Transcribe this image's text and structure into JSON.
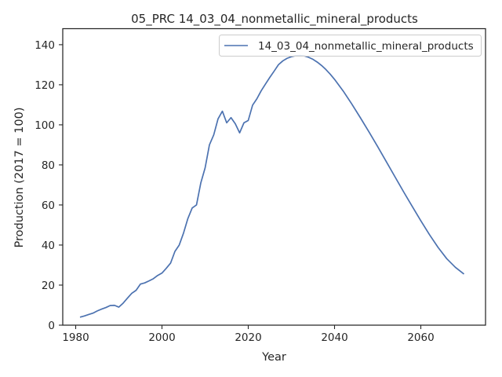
{
  "chart_data": {
    "type": "line",
    "title": "05_PRC 14_03_04_nonmetallic_mineral_products",
    "xlabel": "Year",
    "ylabel": "Production (2017 = 100)",
    "xlim": [
      1977,
      2075
    ],
    "ylim": [
      0,
      148
    ],
    "x_ticks": [
      1980,
      2000,
      2020,
      2040,
      2060
    ],
    "y_ticks": [
      0,
      20,
      40,
      60,
      80,
      100,
      120,
      140
    ],
    "grid": false,
    "legend_position": "top-right",
    "series": [
      {
        "name": "14_03_04_nonmetallic_mineral_products",
        "color": "#4c72b0",
        "x": [
          1981,
          1982,
          1983,
          1984,
          1985,
          1986,
          1987,
          1988,
          1989,
          1990,
          1991,
          1992,
          1993,
          1994,
          1995,
          1996,
          1997,
          1998,
          1999,
          2000,
          2001,
          2002,
          2003,
          2004,
          2005,
          2006,
          2007,
          2008,
          2009,
          2010,
          2011,
          2012,
          2013,
          2014,
          2015,
          2016,
          2017,
          2018,
          2019,
          2020,
          2021,
          2022,
          2023,
          2024,
          2025,
          2026,
          2027,
          2028,
          2029,
          2030,
          2031,
          2032,
          2033,
          2034,
          2035,
          2036,
          2037,
          2038,
          2039,
          2040,
          2042,
          2044,
          2046,
          2048,
          2050,
          2052,
          2054,
          2056,
          2058,
          2060,
          2062,
          2064,
          2066,
          2068,
          2070
        ],
        "values": [
          4,
          4.6,
          5.3,
          6,
          7.1,
          8,
          8.8,
          9.8,
          9.9,
          9,
          11,
          13.5,
          15.9,
          17.4,
          20.5,
          21.1,
          22.1,
          23.2,
          24.8,
          26,
          28.4,
          31,
          36.8,
          40,
          46,
          53.2,
          58.5,
          60,
          71,
          78.5,
          90,
          95,
          103,
          106.8,
          101,
          103.6,
          100.5,
          96,
          101,
          102.2,
          109.8,
          113,
          117,
          120.4,
          123.7,
          126.8,
          130,
          131.9,
          133.2,
          134,
          134.5,
          134.6,
          134.4,
          133.7,
          132.7,
          131.3,
          129.6,
          127.6,
          125.3,
          122.7,
          116.9,
          110.4,
          103.5,
          96.4,
          89.1,
          81.6,
          74.1,
          66.6,
          59.3,
          52.1,
          45.2,
          38.8,
          33.2,
          28.9,
          25.5
        ]
      }
    ]
  }
}
